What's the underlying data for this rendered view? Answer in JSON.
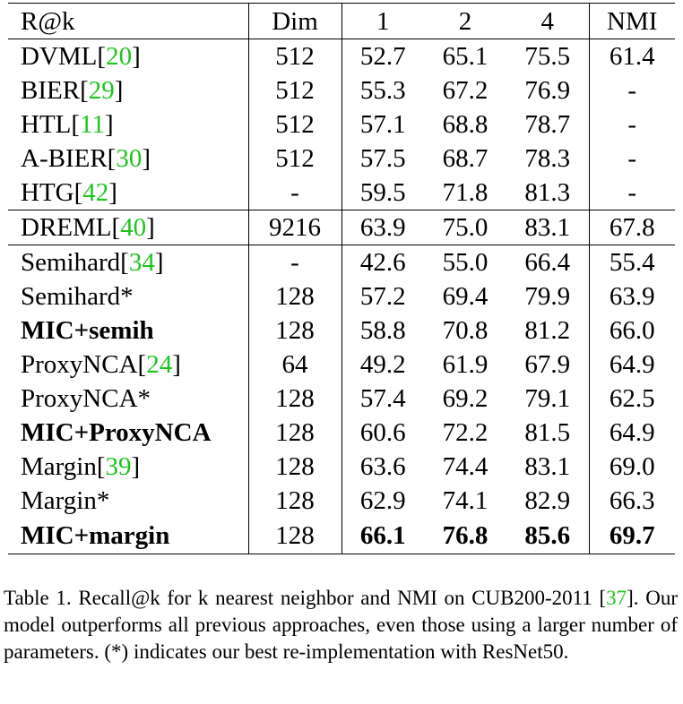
{
  "table": {
    "headers": [
      "R@k",
      "Dim",
      "1",
      "2",
      "4",
      "NMI"
    ],
    "rows": [
      {
        "method": "DVML",
        "cite": "20",
        "dim": "512",
        "r1": "52.7",
        "r2": "65.1",
        "r4": "75.5",
        "nmi": "61.4",
        "bold_method": false,
        "bold_values": false,
        "group_start": false
      },
      {
        "method": "BIER",
        "cite": "29",
        "dim": "512",
        "r1": "55.3",
        "r2": "67.2",
        "r4": "76.9",
        "nmi": "-",
        "bold_method": false,
        "bold_values": false,
        "group_start": false
      },
      {
        "method": "HTL",
        "cite": "11",
        "dim": "512",
        "r1": "57.1",
        "r2": "68.8",
        "r4": "78.7",
        "nmi": "-",
        "bold_method": false,
        "bold_values": false,
        "group_start": false
      },
      {
        "method": "A-BIER",
        "cite": "30",
        "dim": "512",
        "r1": "57.5",
        "r2": "68.7",
        "r4": "78.3",
        "nmi": "-",
        "bold_method": false,
        "bold_values": false,
        "group_start": false
      },
      {
        "method": "HTG",
        "cite": "42",
        "dim": "-",
        "r1": "59.5",
        "r2": "71.8",
        "r4": "81.3",
        "nmi": "-",
        "bold_method": false,
        "bold_values": false,
        "group_start": false
      },
      {
        "method": "DREML",
        "cite": "40",
        "dim": "9216",
        "r1": "63.9",
        "r2": "75.0",
        "r4": "83.1",
        "nmi": "67.8",
        "bold_method": false,
        "bold_values": false,
        "group_start": true
      },
      {
        "method": "Semihard",
        "cite": "34",
        "dim": "-",
        "r1": "42.6",
        "r2": "55.0",
        "r4": "66.4",
        "nmi": "55.4",
        "bold_method": false,
        "bold_values": false,
        "group_start": true
      },
      {
        "method": "Semihard*",
        "cite": "",
        "dim": "128",
        "r1": "57.2",
        "r2": "69.4",
        "r4": "79.9",
        "nmi": "63.9",
        "bold_method": false,
        "bold_values": false,
        "group_start": false
      },
      {
        "method": "MIC+semih",
        "cite": "",
        "dim": "128",
        "r1": "58.8",
        "r2": "70.8",
        "r4": "81.2",
        "nmi": "66.0",
        "bold_method": true,
        "bold_values": false,
        "group_start": false
      },
      {
        "method": "ProxyNCA",
        "cite": "24",
        "dim": "64",
        "r1": "49.2",
        "r2": "61.9",
        "r4": "67.9",
        "nmi": "64.9",
        "bold_method": false,
        "bold_values": false,
        "group_start": false
      },
      {
        "method": "ProxyNCA*",
        "cite": "",
        "dim": "128",
        "r1": "57.4",
        "r2": "69.2",
        "r4": "79.1",
        "nmi": "62.5",
        "bold_method": false,
        "bold_values": false,
        "group_start": false
      },
      {
        "method": "MIC+ProxyNCA",
        "cite": "",
        "dim": "128",
        "r1": "60.6",
        "r2": "72.2",
        "r4": "81.5",
        "nmi": "64.9",
        "bold_method": true,
        "bold_values": false,
        "group_start": false
      },
      {
        "method": "Margin",
        "cite": "39",
        "dim": "128",
        "r1": "63.6",
        "r2": "74.4",
        "r4": "83.1",
        "nmi": "69.0",
        "bold_method": false,
        "bold_values": false,
        "group_start": false
      },
      {
        "method": "Margin*",
        "cite": "",
        "dim": "128",
        "r1": "62.9",
        "r2": "74.1",
        "r4": "82.9",
        "nmi": "66.3",
        "bold_method": false,
        "bold_values": false,
        "group_start": false
      },
      {
        "method": "MIC+margin",
        "cite": "",
        "dim": "128",
        "r1": "66.1",
        "r2": "76.8",
        "r4": "85.6",
        "nmi": "69.7",
        "bold_method": true,
        "bold_values": true,
        "group_start": false
      }
    ]
  },
  "caption": {
    "part1": "Table 1. Recall@k for k nearest neighbor and NMI on CUB200-2011 [",
    "cite": "37",
    "part2": "]. Our model outperforms all previous approaches, even those using a larger number of parameters. (*) indicates our best re-implementation with ResNet50."
  },
  "colors": {
    "citation": "#1ec51e",
    "text": "#000000"
  }
}
